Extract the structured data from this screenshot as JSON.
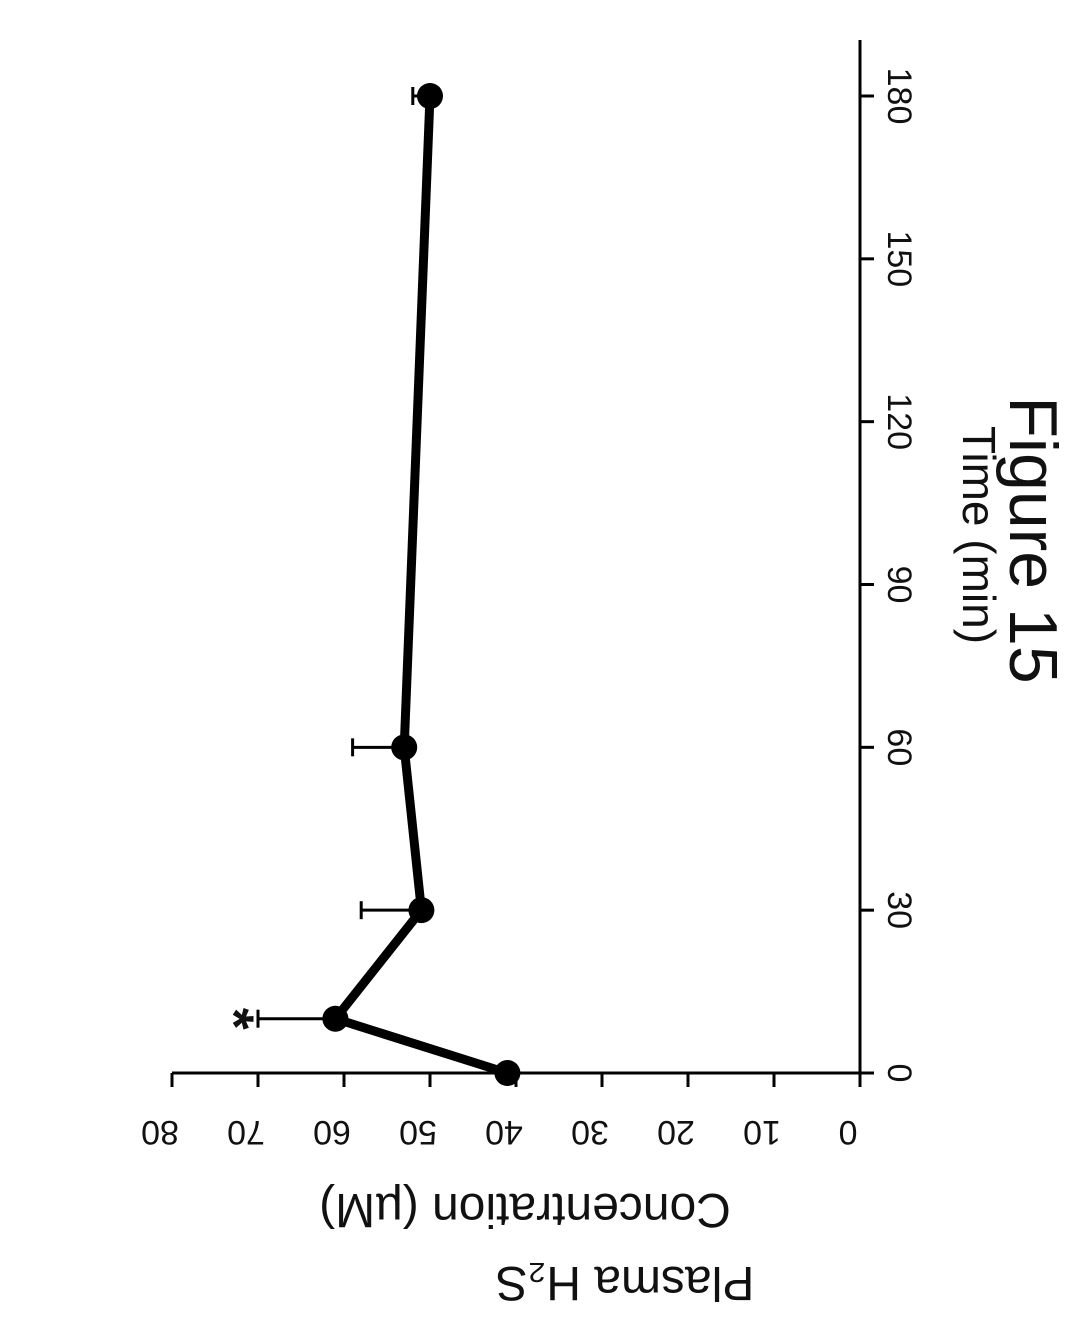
{
  "figure_title": "Figure 15",
  "chart_data": {
    "type": "line",
    "title": "Figure 15",
    "xlabel": "Time (min)",
    "ylabel_line1": "Plasma H₂S",
    "ylabel_line2": "Concentration (µM)",
    "xlim": [
      0,
      180
    ],
    "ylim": [
      0,
      80
    ],
    "xticks": [
      0,
      30,
      60,
      90,
      120,
      150,
      180
    ],
    "yticks": [
      0,
      10,
      20,
      30,
      40,
      50,
      60,
      70,
      80
    ],
    "grid": false,
    "legend": "none",
    "series": [
      {
        "x": [
          0,
          10,
          30,
          60,
          180
        ],
        "y": [
          41,
          61,
          51,
          53,
          50
        ],
        "error_upper": [
          null,
          70,
          58,
          59,
          52
        ],
        "markers": "filled-circle",
        "color": "#000000"
      }
    ],
    "annotations": [
      {
        "text": "*",
        "x": 10,
        "y": 75
      }
    ],
    "orientation": "rotated-90-clockwise"
  }
}
